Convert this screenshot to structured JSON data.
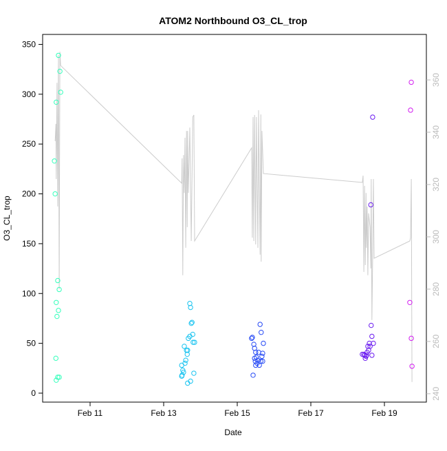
{
  "chart_data": {
    "type": "scatter",
    "title": "ATOM2 Northbound O3_CL_trop",
    "x_label": "Date",
    "y_label": "O3_CL_trop",
    "xlim": [
      9.71,
      20.14
    ],
    "ylim": [
      -9,
      360
    ],
    "y2lim": [
      236.8,
      377.4
    ],
    "xticks": [
      {
        "value": 11,
        "label": "Feb 11"
      },
      {
        "value": 13,
        "label": "Feb 13"
      },
      {
        "value": 15,
        "label": "Feb 15"
      },
      {
        "value": 17,
        "label": "Feb 17"
      },
      {
        "value": 19,
        "label": "Feb 19"
      }
    ],
    "yticks": [
      0,
      50,
      100,
      150,
      200,
      250,
      300,
      350
    ],
    "y2ticks": [
      240,
      260,
      280,
      300,
      320,
      340,
      360
    ],
    "series": [
      {
        "type": "scatter",
        "color": "#33ffbb",
        "x": [
          10.14,
          10.18,
          10.2,
          10.08,
          10.03,
          10.05,
          10.12,
          10.16,
          10.08,
          10.14,
          10.1,
          10.07,
          10.12,
          10.16,
          10.08
        ],
        "values": [
          339,
          323,
          302,
          292,
          233,
          200,
          113,
          104,
          91,
          83,
          77,
          35,
          16,
          16,
          13
        ]
      },
      {
        "type": "scatter",
        "color": "#17c3f0",
        "x": [
          13.71,
          13.73,
          13.77,
          13.75,
          13.71,
          13.67,
          13.79,
          13.8,
          13.84,
          13.56,
          13.62,
          13.65,
          13.64,
          13.6,
          13.58,
          13.49,
          13.52,
          13.54,
          13.5,
          13.49,
          13.82,
          13.73,
          13.65
        ],
        "values": [
          90,
          86,
          71,
          70,
          57,
          55,
          59,
          51,
          51,
          47,
          43,
          43,
          39,
          33,
          30,
          28,
          23,
          21,
          18,
          17,
          20,
          12,
          10
        ]
      },
      {
        "type": "scatter",
        "color": "#2448f5",
        "x": [
          15.62,
          15.65,
          15.71,
          15.41,
          15.39,
          15.45,
          15.47,
          15.5,
          15.58,
          15.69,
          15.67,
          15.52,
          15.47,
          15.56,
          15.49,
          15.64,
          15.69,
          15.54,
          15.6,
          15.5,
          15.43
        ],
        "values": [
          69,
          61,
          50,
          56,
          55,
          49,
          45,
          41,
          41,
          40,
          37,
          36,
          35,
          33,
          32,
          32,
          32,
          30,
          28,
          28,
          18
        ]
      },
      {
        "type": "scatter",
        "color": "#6a1af0",
        "x": [
          18.68,
          18.63,
          18.64,
          18.66,
          18.7,
          18.59,
          18.55,
          18.61,
          18.57,
          18.53,
          18.51,
          18.4,
          18.44,
          18.46,
          18.5,
          18.48,
          18.66
        ],
        "values": [
          277,
          189,
          68,
          57,
          50,
          50,
          47,
          47,
          43,
          41,
          38,
          39,
          39,
          38,
          37,
          35,
          38
        ]
      },
      {
        "type": "scatter",
        "color": "#d21cf0",
        "x": [
          19.73,
          19.71,
          19.69,
          19.73,
          19.75
        ],
        "values": [
          312,
          284,
          91,
          55,
          27
        ]
      },
      {
        "type": "line",
        "axis": "y2",
        "color": "#cccccc",
        "x": [
          10.05,
          10.07,
          10.08,
          10.1,
          10.12,
          10.14,
          10.16,
          10.18,
          10.2,
          13.49,
          13.5,
          13.52,
          13.54,
          13.56,
          13.58,
          13.6,
          13.62,
          13.64,
          13.65,
          13.67,
          13.71,
          13.75,
          13.79,
          13.82,
          13.84,
          15.39,
          15.41,
          15.43,
          15.45,
          15.47,
          15.5,
          15.52,
          15.56,
          15.58,
          15.62,
          15.64,
          15.65,
          15.67,
          15.71,
          18.4,
          18.42,
          18.44,
          18.46,
          18.48,
          18.5,
          18.51,
          18.53,
          18.55,
          18.57,
          18.61,
          18.63,
          18.64,
          18.66,
          18.68,
          18.7,
          18.72,
          19.69,
          19.71,
          19.73,
          19.75
        ],
        "values": [
          336.6,
          343.2,
          322.1,
          358.9,
          311.6,
          369.5,
          280,
          370.8,
          365.5,
          320.5,
          330,
          285.3,
          331.3,
          316.8,
          337.9,
          295.8,
          340.5,
          303.7,
          340.5,
          316.8,
          341.8,
          298.4,
          345.8,
          346.6,
          298.4,
          334,
          299.7,
          345.8,
          298.4,
          346.6,
          297.1,
          345.8,
          295.8,
          348.4,
          293.2,
          346.8,
          290.5,
          340.5,
          324.2,
          320.8,
          323.4,
          286.6,
          319.5,
          289.2,
          316.8,
          295.8,
          311.6,
          285.3,
          309,
          303.7,
          287.9,
          322.1,
          268.2,
          291.8,
          322.1,
          291.8,
          298.4,
          299.7,
          322.1,
          244.5
        ]
      }
    ]
  }
}
